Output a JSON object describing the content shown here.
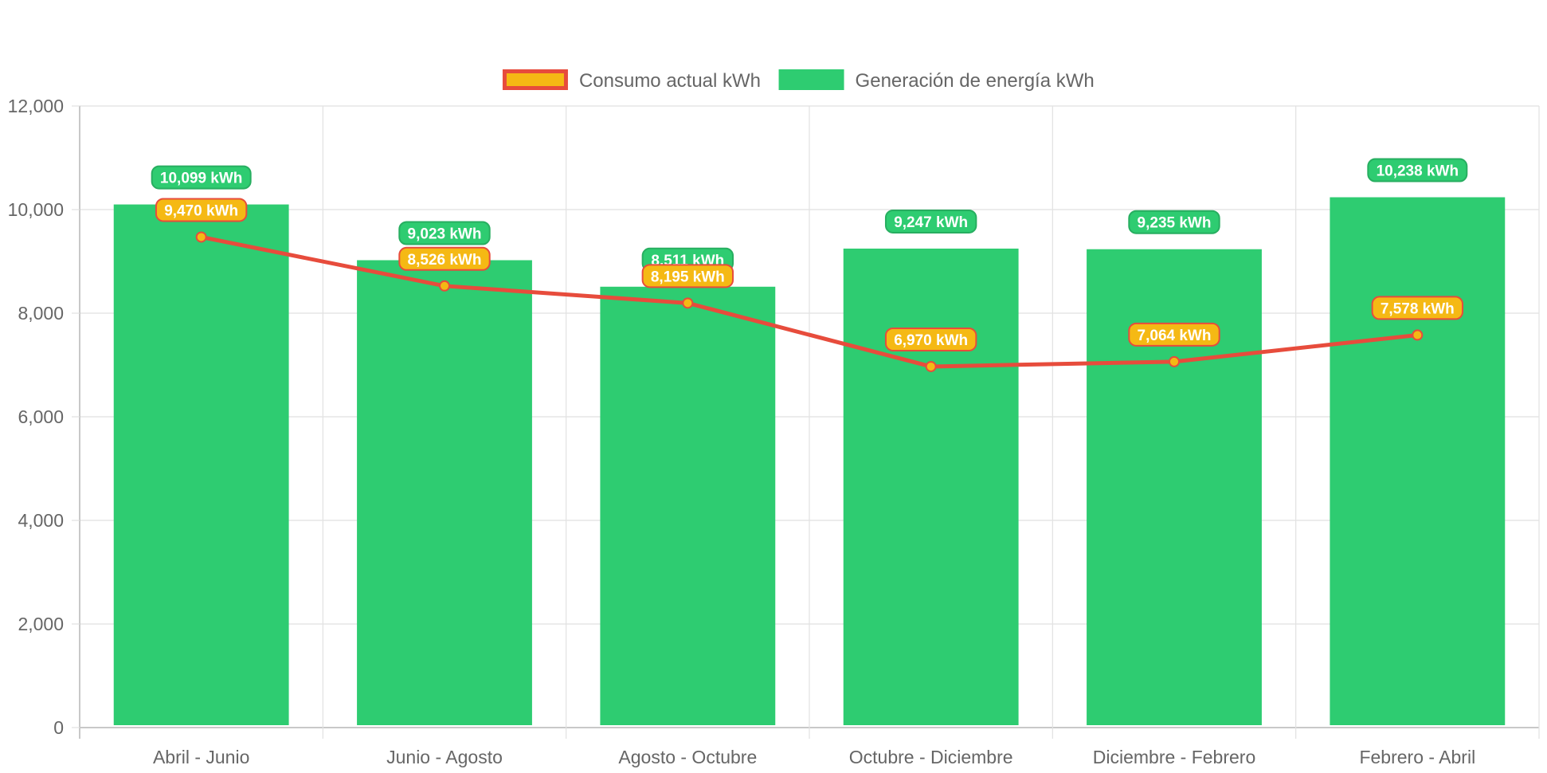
{
  "chart_data": {
    "type": "bar",
    "title": "",
    "xlabel": "",
    "ylabel": "",
    "categories": [
      "Abril - Junio",
      "Junio - Agosto",
      "Agosto - Octubre",
      "Octubre - Diciembre",
      "Diciembre - Febrero",
      "Febrero - Abril"
    ],
    "ylim": [
      0,
      12000
    ],
    "yticks": [
      0,
      2000,
      4000,
      6000,
      8000,
      10000,
      12000
    ],
    "grid": true,
    "legend_position": "top-center",
    "unit_suffix": " kWh",
    "series": [
      {
        "name": "Consumo actual kWh",
        "type": "line",
        "values": [
          9470,
          8526,
          8195,
          6970,
          7064,
          7578
        ],
        "color": "#e74c3c",
        "fill_color": "#f5b914"
      },
      {
        "name": "Generación de energía kWh",
        "type": "bar",
        "values": [
          10099,
          9023,
          8511,
          9247,
          9235,
          10238
        ],
        "color": "#2ecc71"
      }
    ]
  }
}
